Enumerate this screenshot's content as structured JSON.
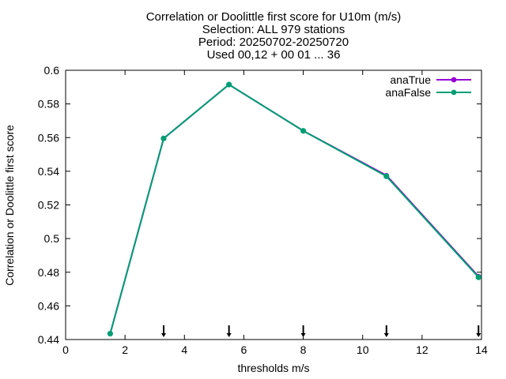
{
  "chart_data": {
    "type": "line",
    "title_lines": [
      "Correlation or Doolittle first score  for U10m (m/s)",
      "Selection: ALL    979 stations",
      "Period: 20250702-20250720",
      "Used 00,12 + 00 01 ... 36"
    ],
    "xlabel": "thresholds m/s",
    "ylabel": "Correlation or Doolittle first score",
    "xlim": [
      0,
      14
    ],
    "ylim": [
      0.44,
      0.6
    ],
    "xticks": [
      0,
      2,
      4,
      6,
      8,
      10,
      12,
      14
    ],
    "yticks": [
      0.44,
      0.46,
      0.48,
      0.5,
      0.52,
      0.54,
      0.56,
      0.58,
      0.6
    ],
    "ytick_labels": [
      "0.44",
      "0.46",
      "0.48",
      "0.5",
      "0.52",
      "0.54",
      "0.56",
      "0.58",
      "0.6"
    ],
    "legend_position": "top-right",
    "grid": false,
    "threshold_markers": [
      3.3,
      5.5,
      8.0,
      10.8,
      13.9
    ],
    "series": [
      {
        "name": "anaTrue",
        "color": "#9400d3",
        "x": [
          1.5,
          3.3,
          5.5,
          8.0,
          10.8,
          13.9
        ],
        "y": [
          0.4435,
          0.5595,
          0.5915,
          0.564,
          0.5375,
          0.4775
        ]
      },
      {
        "name": "anaFalse",
        "color": "#009e73",
        "x": [
          1.5,
          3.3,
          5.5,
          8.0,
          10.8,
          13.9
        ],
        "y": [
          0.4435,
          0.5595,
          0.5915,
          0.564,
          0.537,
          0.477
        ]
      }
    ]
  }
}
